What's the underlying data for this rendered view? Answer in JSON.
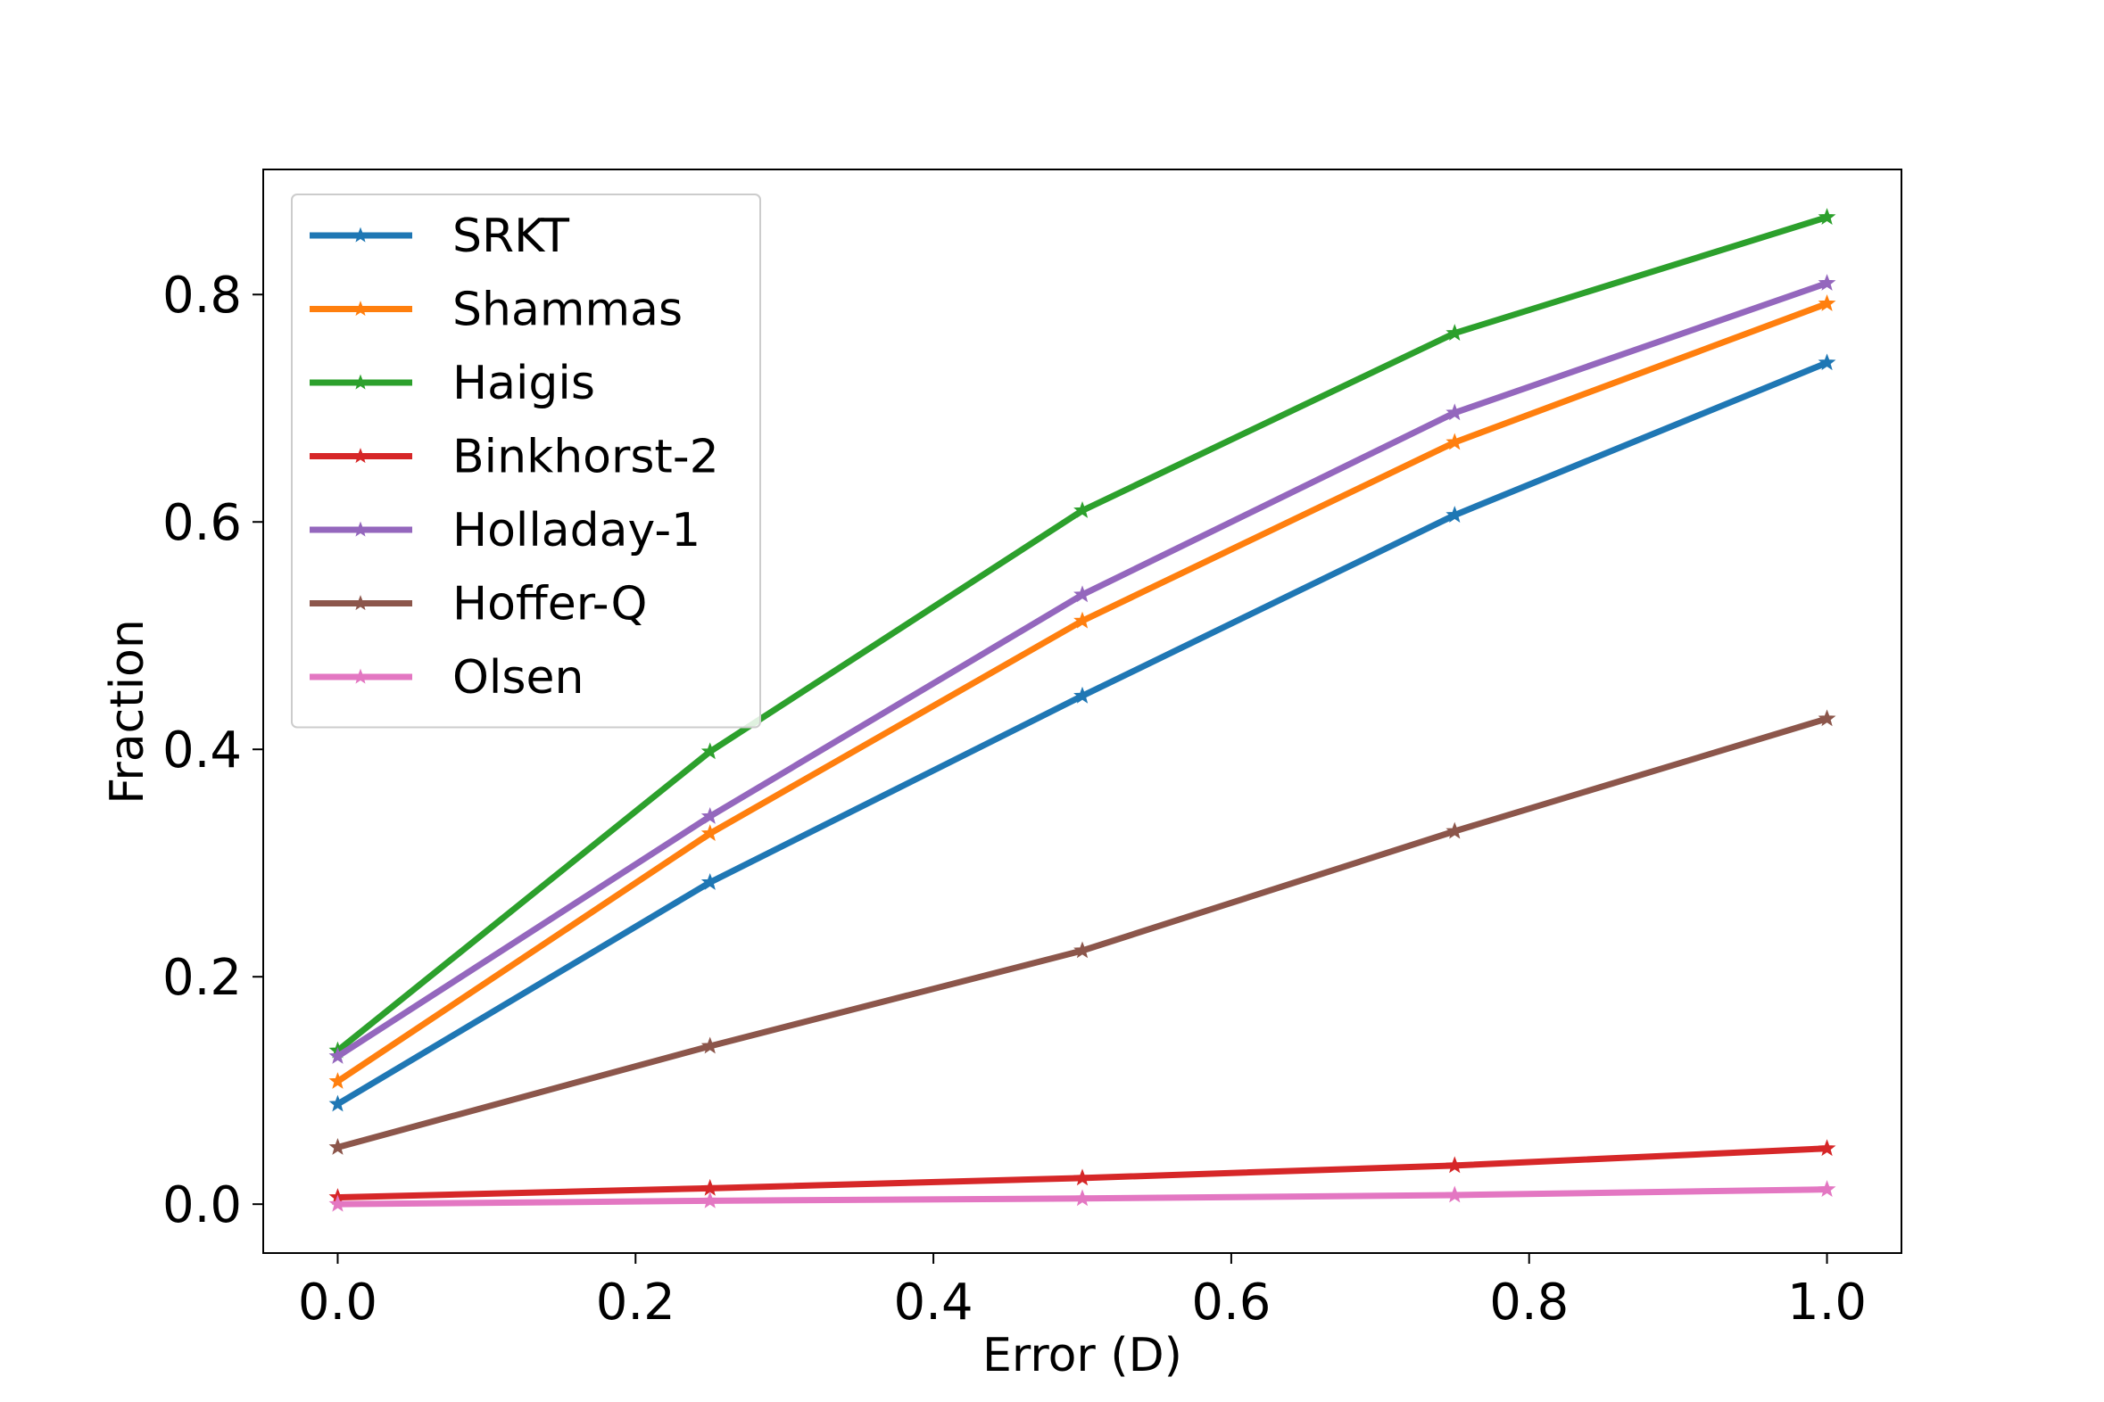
{
  "chart_data": {
    "type": "line",
    "title": "",
    "xlabel": "Error (D)",
    "ylabel": "Fraction",
    "xlim": [
      -0.05,
      1.05
    ],
    "ylim": [
      -0.043,
      0.91
    ],
    "x_ticks": [
      "0.0",
      "0.2",
      "0.4",
      "0.6",
      "0.8",
      "1.0"
    ],
    "y_ticks": [
      "0.0",
      "0.2",
      "0.4",
      "0.6",
      "0.8"
    ],
    "grid": false,
    "legend_position": "top-left",
    "marker": "star",
    "x": [
      0.0,
      0.25,
      0.5,
      0.75,
      1.0
    ],
    "series": [
      {
        "name": "SRKT",
        "color": "#1f77b4",
        "values": [
          0.088,
          0.283,
          0.447,
          0.606,
          0.74
        ]
      },
      {
        "name": "Shammas",
        "color": "#ff7f0e",
        "values": [
          0.108,
          0.326,
          0.513,
          0.67,
          0.792
        ]
      },
      {
        "name": "Haigis",
        "color": "#2ca02c",
        "values": [
          0.135,
          0.398,
          0.61,
          0.766,
          0.868
        ]
      },
      {
        "name": "Binkhorst-2",
        "color": "#d62728",
        "values": [
          0.006,
          0.014,
          0.023,
          0.034,
          0.049
        ]
      },
      {
        "name": "Holladay-1",
        "color": "#9467bd",
        "values": [
          0.13,
          0.341,
          0.536,
          0.696,
          0.81
        ]
      },
      {
        "name": "Hoffer-Q",
        "color": "#8c564b",
        "values": [
          0.05,
          0.139,
          0.223,
          0.328,
          0.427
        ]
      },
      {
        "name": "Olsen",
        "color": "#e377c2",
        "values": [
          0.0,
          0.003,
          0.005,
          0.008,
          0.013
        ]
      }
    ]
  }
}
